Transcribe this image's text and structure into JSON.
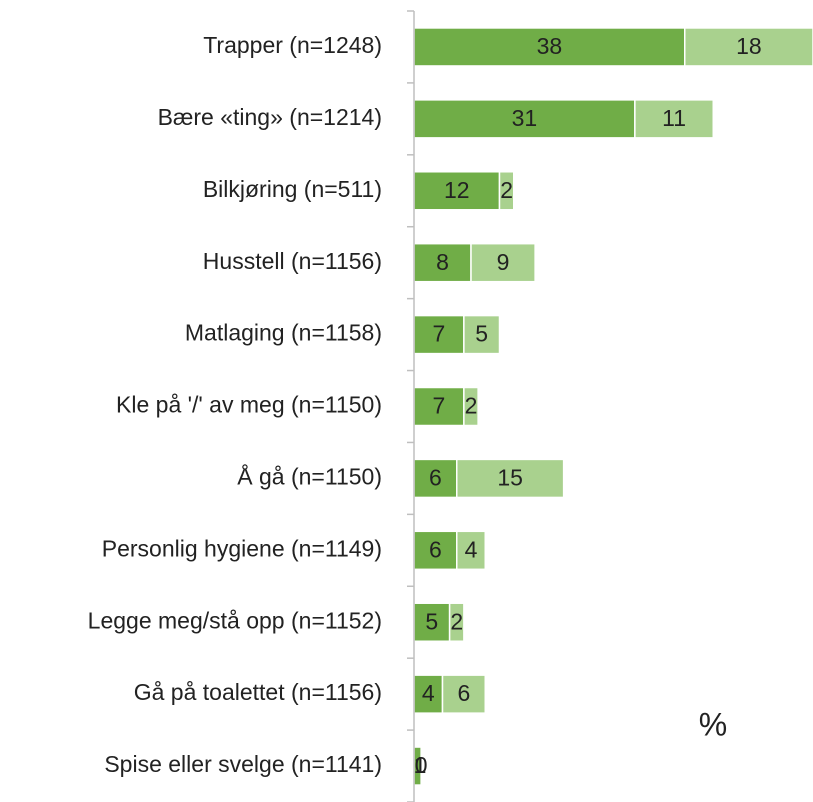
{
  "chart_data": {
    "type": "stacked_barh",
    "categories": [
      "Trapper (n=1248)",
      "Bære «ting» (n=1214)",
      "Bilkjøring (n=511)",
      "Husstell (n=1156)",
      "Matlaging (n=1158)",
      "Kle på '/' av meg (n=1150)",
      "Å gå (n=1150)",
      "Personlig hygiene (n=1149)",
      "Legge meg/stå opp (n=1152)",
      "Gå på toalettet (n=1156)",
      "Spise eller svelge (n=1141)"
    ],
    "series": [
      {
        "color": "#70ad47",
        "values": [
          38,
          31,
          12,
          8,
          7,
          7,
          6,
          6,
          5,
          4,
          1
        ]
      },
      {
        "color": "#a9d18e",
        "values": [
          18,
          11,
          2,
          9,
          5,
          2,
          15,
          4,
          2,
          6,
          0
        ]
      }
    ],
    "xlim": [
      0,
      56
    ],
    "annotation": "%"
  }
}
